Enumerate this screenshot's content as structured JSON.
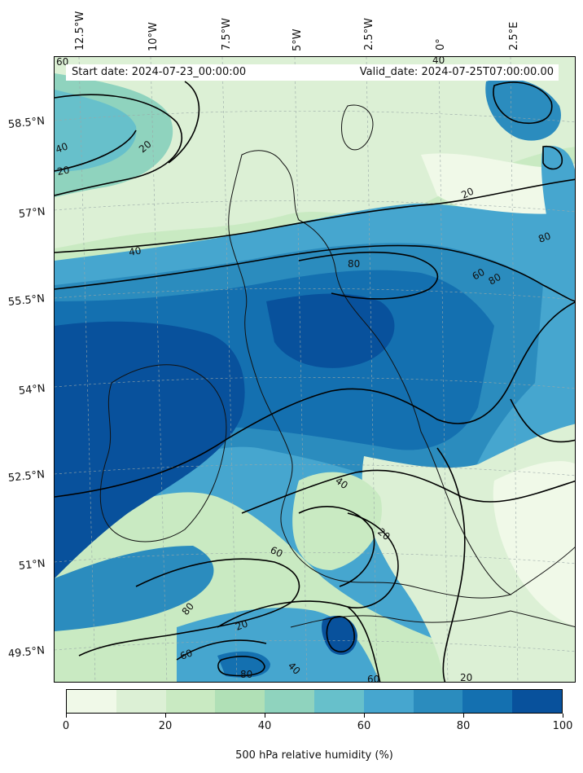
{
  "map": {
    "start_date": "Start date: 2024-07-23_00:00:00",
    "valid_date": "Valid_date: 2024-07-25T07:00:00.00",
    "longitude_labels": [
      "12.5°W",
      "10°W",
      "7.5°W",
      "5°W",
      "2.5°W",
      "0°",
      "2.5°E"
    ],
    "latitude_labels": [
      "58.5°N",
      "57°N",
      "55.5°N",
      "54°N",
      "52.5°N",
      "51°N",
      "49.5°N"
    ],
    "contour_labels": [
      "60",
      "40",
      "20",
      "40",
      "20",
      "20",
      "40",
      "80",
      "60",
      "80",
      "80",
      "40",
      "20",
      "60",
      "80",
      "60",
      "20",
      "40",
      "80",
      "60",
      "20"
    ]
  },
  "colorbar": {
    "label": "500 hPa relative humidity (%)",
    "ticks": [
      "0",
      "20",
      "40",
      "60",
      "80",
      "100"
    ],
    "colors": [
      "#f0f9e8",
      "#dcf0d5",
      "#c9eac2",
      "#b0e0b6",
      "#8fd3be",
      "#67c0cb",
      "#46a6cf",
      "#2b8cbe",
      "#1470b0",
      "#08519c"
    ]
  }
}
